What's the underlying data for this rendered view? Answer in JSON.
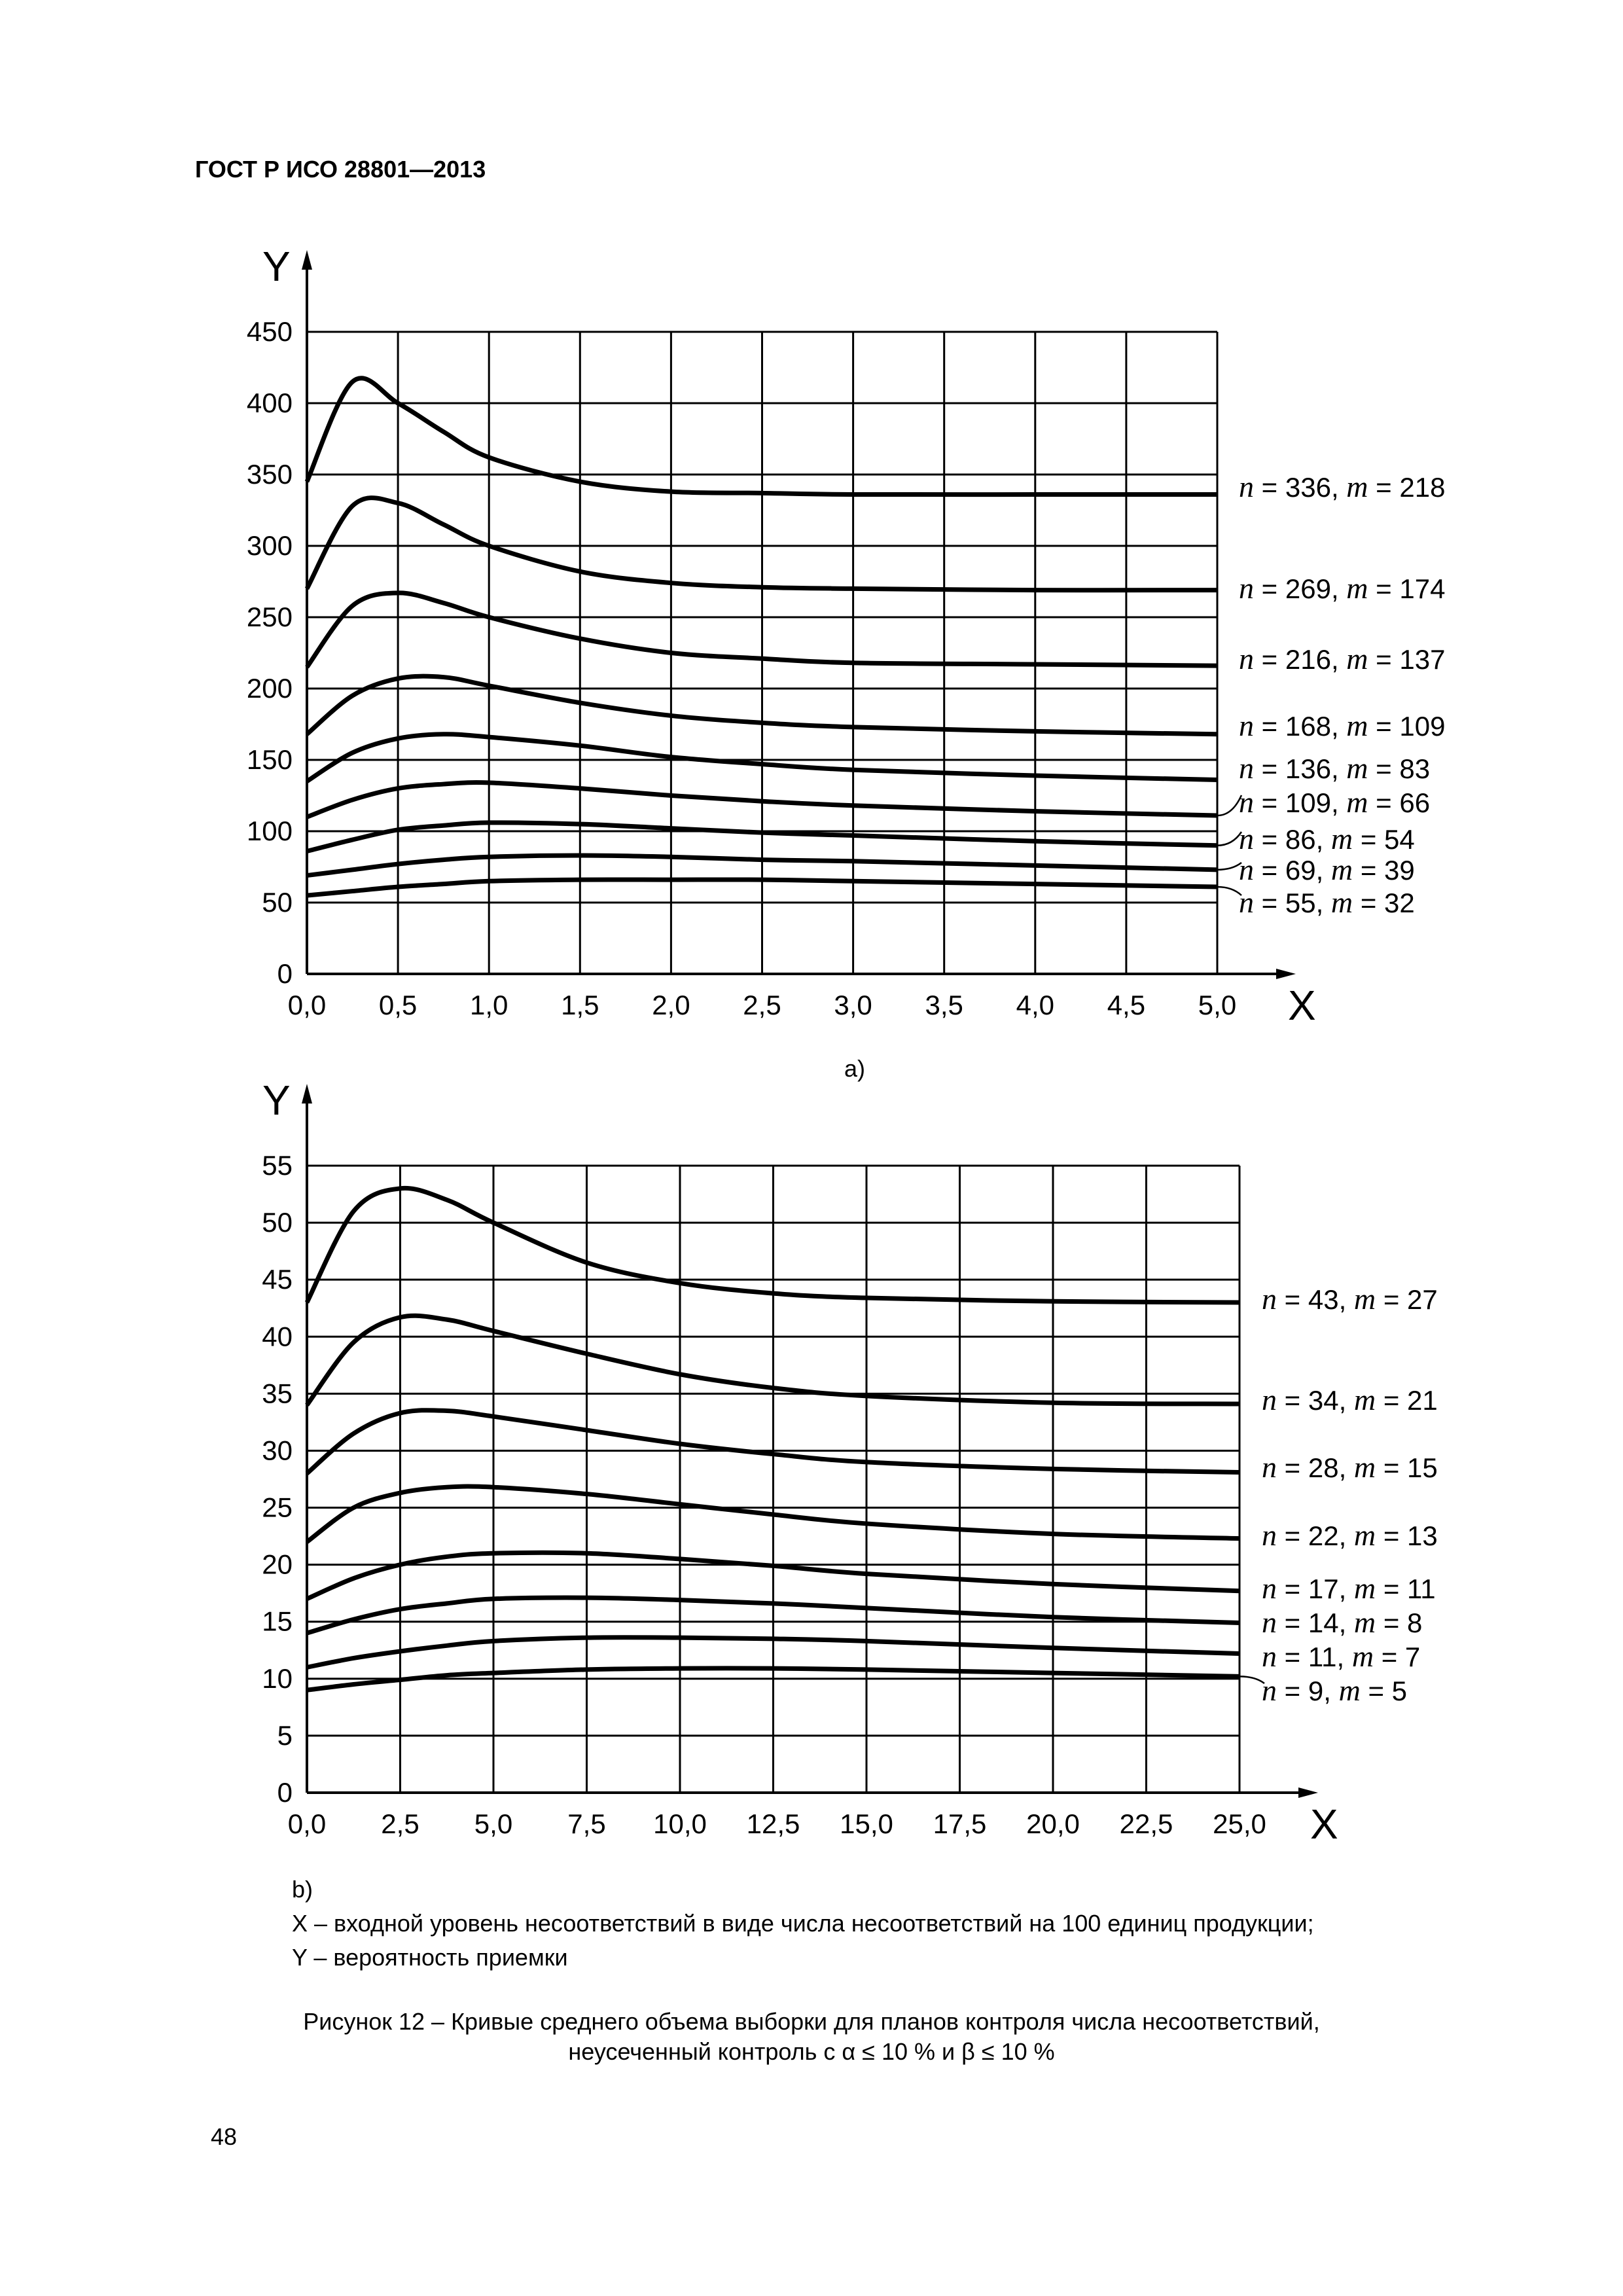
{
  "header": "ГОСТ Р ИСО 28801—2013",
  "chart_data": [
    {
      "id": "a",
      "type": "line",
      "sublabel": "a)",
      "xlabel": "X",
      "ylabel": "Y",
      "xlim": [
        0,
        5
      ],
      "ylim": [
        0,
        450
      ],
      "grid": true,
      "xticks": [
        "0,0",
        "0,5",
        "1,0",
        "1,5",
        "2,0",
        "2,5",
        "3,0",
        "3,5",
        "4,0",
        "4,5",
        "5,0"
      ],
      "yticks": [
        "0",
        "50",
        "100",
        "150",
        "200",
        "250",
        "300",
        "350",
        "400",
        "450"
      ],
      "x": [
        0,
        0.25,
        0.5,
        0.75,
        1,
        1.5,
        2,
        2.5,
        3,
        4,
        5
      ],
      "series": [
        {
          "n": "336",
          "m": "218",
          "values": [
            345,
            415,
            400,
            380,
            362,
            345,
            338,
            337,
            336,
            336,
            336
          ]
        },
        {
          "n": "269",
          "m": "174",
          "values": [
            270,
            328,
            330,
            315,
            300,
            282,
            274,
            271,
            270,
            269,
            269
          ]
        },
        {
          "n": "216",
          "m": "137",
          "values": [
            215,
            258,
            267,
            260,
            250,
            235,
            225,
            221,
            218,
            217,
            216
          ]
        },
        {
          "n": "168",
          "m": "109",
          "values": [
            168,
            195,
            207,
            208,
            202,
            190,
            181,
            176,
            173,
            170,
            168
          ]
        },
        {
          "n": "136",
          "m": "83",
          "values": [
            135,
            155,
            165,
            168,
            166,
            160,
            152,
            147,
            143,
            139,
            136
          ]
        },
        {
          "n": "109",
          "m": "66",
          "values": [
            110,
            122,
            130,
            133,
            134,
            130,
            125,
            121,
            118,
            114,
            111
          ]
        },
        {
          "n": "86",
          "m": "54",
          "values": [
            86,
            94,
            101,
            104,
            106,
            105,
            102,
            99,
            97,
            93,
            90
          ]
        },
        {
          "n": "69",
          "m": "39",
          "values": [
            69,
            73,
            77,
            80,
            82,
            83,
            82,
            80,
            79,
            76,
            73
          ]
        },
        {
          "n": "55",
          "m": "32",
          "values": [
            55,
            58,
            61,
            63,
            65,
            66,
            66,
            66,
            65,
            63,
            61
          ]
        }
      ]
    },
    {
      "id": "b",
      "type": "line",
      "sublabel": "b)",
      "xlabel": "X",
      "ylabel": "Y",
      "xlim": [
        0,
        25
      ],
      "ylim": [
        0,
        55
      ],
      "grid": true,
      "xticks": [
        "0,0",
        "2,5",
        "5,0",
        "7,5",
        "10,0",
        "12,5",
        "15,0",
        "17,5",
        "20,0",
        "22,5",
        "25,0"
      ],
      "yticks": [
        "0",
        "5",
        "10",
        "15",
        "20",
        "25",
        "30",
        "35",
        "40",
        "45",
        "50",
        "55"
      ],
      "x": [
        0,
        1.25,
        2.5,
        3.75,
        5,
        7.5,
        10,
        12.5,
        15,
        20,
        25
      ],
      "series": [
        {
          "n": "43",
          "m": "27",
          "values": [
            43,
            51,
            53,
            52,
            50,
            46.5,
            44.7,
            43.8,
            43.4,
            43.1,
            43
          ]
        },
        {
          "n": "34",
          "m": "21",
          "values": [
            34,
            39.5,
            41.7,
            41.5,
            40.5,
            38.5,
            36.7,
            35.5,
            34.8,
            34.2,
            34.1
          ]
        },
        {
          "n": "28",
          "m": "15",
          "values": [
            28,
            31.5,
            33.3,
            33.5,
            33,
            31.8,
            30.6,
            29.7,
            29,
            28.4,
            28.1
          ]
        },
        {
          "n": "22",
          "m": "13",
          "values": [
            22,
            25,
            26.3,
            26.8,
            26.8,
            26.2,
            25.3,
            24.4,
            23.6,
            22.7,
            22.3
          ]
        },
        {
          "n": "17",
          "m": "11",
          "values": [
            17,
            18.8,
            20,
            20.7,
            21,
            21,
            20.5,
            19.9,
            19.2,
            18.3,
            17.7
          ]
        },
        {
          "n": "14",
          "m": "8",
          "values": [
            14,
            15.2,
            16.1,
            16.6,
            17,
            17.1,
            16.9,
            16.6,
            16.2,
            15.4,
            14.9
          ]
        },
        {
          "n": "11",
          "m": "7",
          "values": [
            11,
            11.8,
            12.4,
            12.9,
            13.3,
            13.6,
            13.6,
            13.5,
            13.3,
            12.7,
            12.2
          ]
        },
        {
          "n": "9",
          "m": "5",
          "values": [
            9,
            9.5,
            9.9,
            10.3,
            10.5,
            10.8,
            10.9,
            10.9,
            10.8,
            10.5,
            10.2
          ]
        }
      ]
    }
  ],
  "legend": {
    "x_desc": "X – входной уровень несоответствий в виде числа несоответствий на 100 единиц продукции;",
    "y_desc": "Y – вероятность приемки"
  },
  "caption": {
    "line1": "Рисунок 12 – Кривые среднего объема выборки для планов контроля числа несоответствий,",
    "line2": "неусеченный контроль с α ≤ 10 % и β ≤ 10 %"
  },
  "page_number": "48"
}
